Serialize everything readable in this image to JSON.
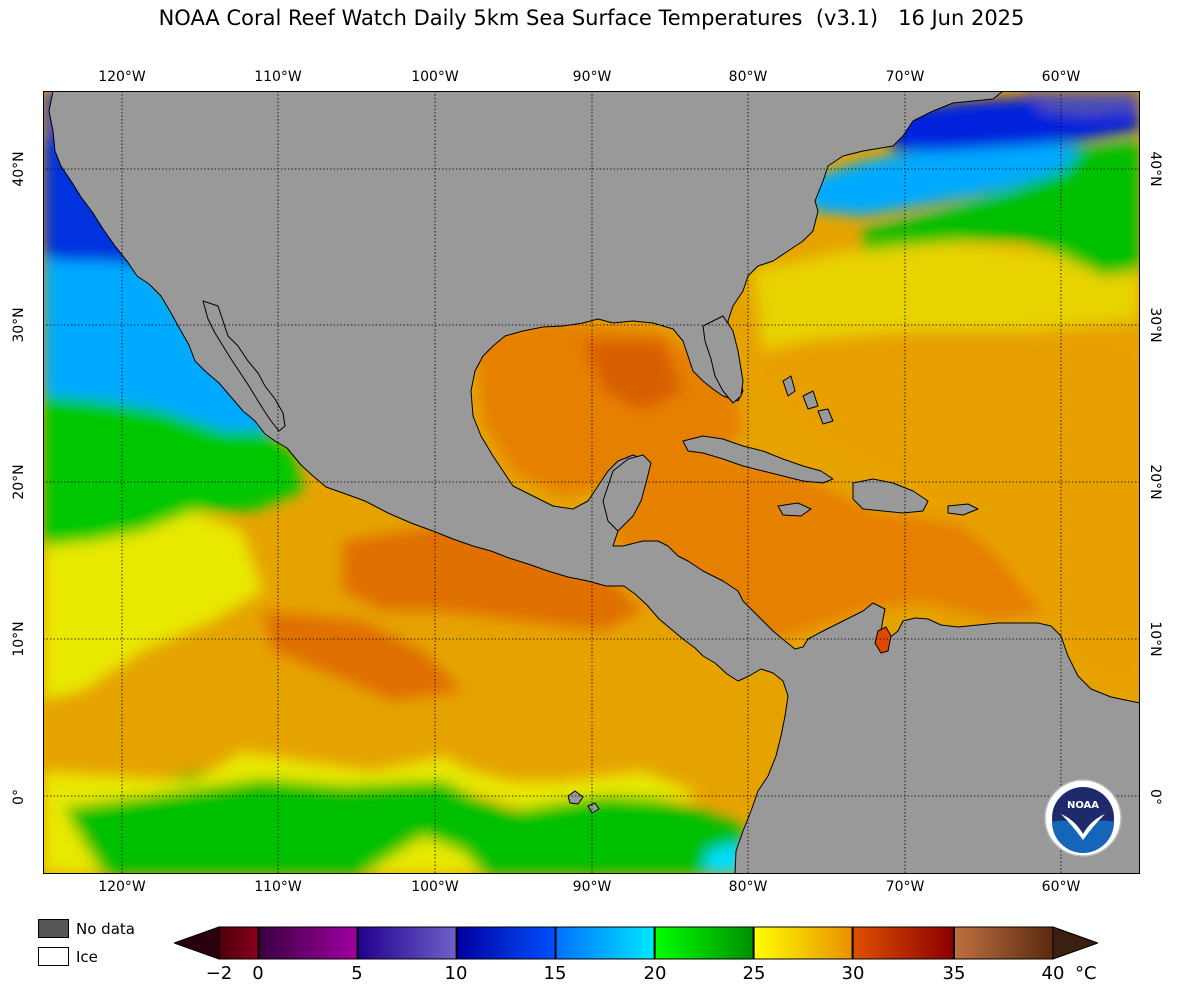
{
  "title": {
    "text": "NOAA Coral Reef Watch Daily 5km Sea Surface Temperatures  (v3.1)",
    "date": "16 Jun 2025"
  },
  "lon_labels": [
    "120°W",
    "110°W",
    "100°W",
    "90°W",
    "80°W",
    "70°W",
    "60°W"
  ],
  "lat_labels": [
    "40°N",
    "30°N",
    "20°N",
    "10°N",
    "0°"
  ],
  "legend": {
    "no_data": "No data",
    "ice": "Ice",
    "no_data_color": "#555555",
    "ice_color": "#ffffff"
  },
  "colorbar": {
    "ticks": [
      "−2",
      "0",
      "5",
      "10",
      "15",
      "20",
      "25",
      "30",
      "35",
      "40"
    ],
    "unit": "°C",
    "colors": {
      "under": "#2a0010",
      "over": "#3a2010",
      "bands": [
        "#4a0010",
        "#6a0030",
        "#500060",
        "#30009a",
        "#0000c8",
        "#0066ff",
        "#00c8ff",
        "#00ee00",
        "#ffff00",
        "#ee9000",
        "#d40000",
        "#b0603a"
      ]
    }
  },
  "map": {
    "land_color": "#999999",
    "ocean_colors": {
      "cold": "#0033dd",
      "cool": "#00aaff",
      "temperate": "#00cc00",
      "warm": "#e6e600",
      "hot": "#e68a00",
      "hottest": "#e05500"
    },
    "logo_text": "NOAA"
  }
}
